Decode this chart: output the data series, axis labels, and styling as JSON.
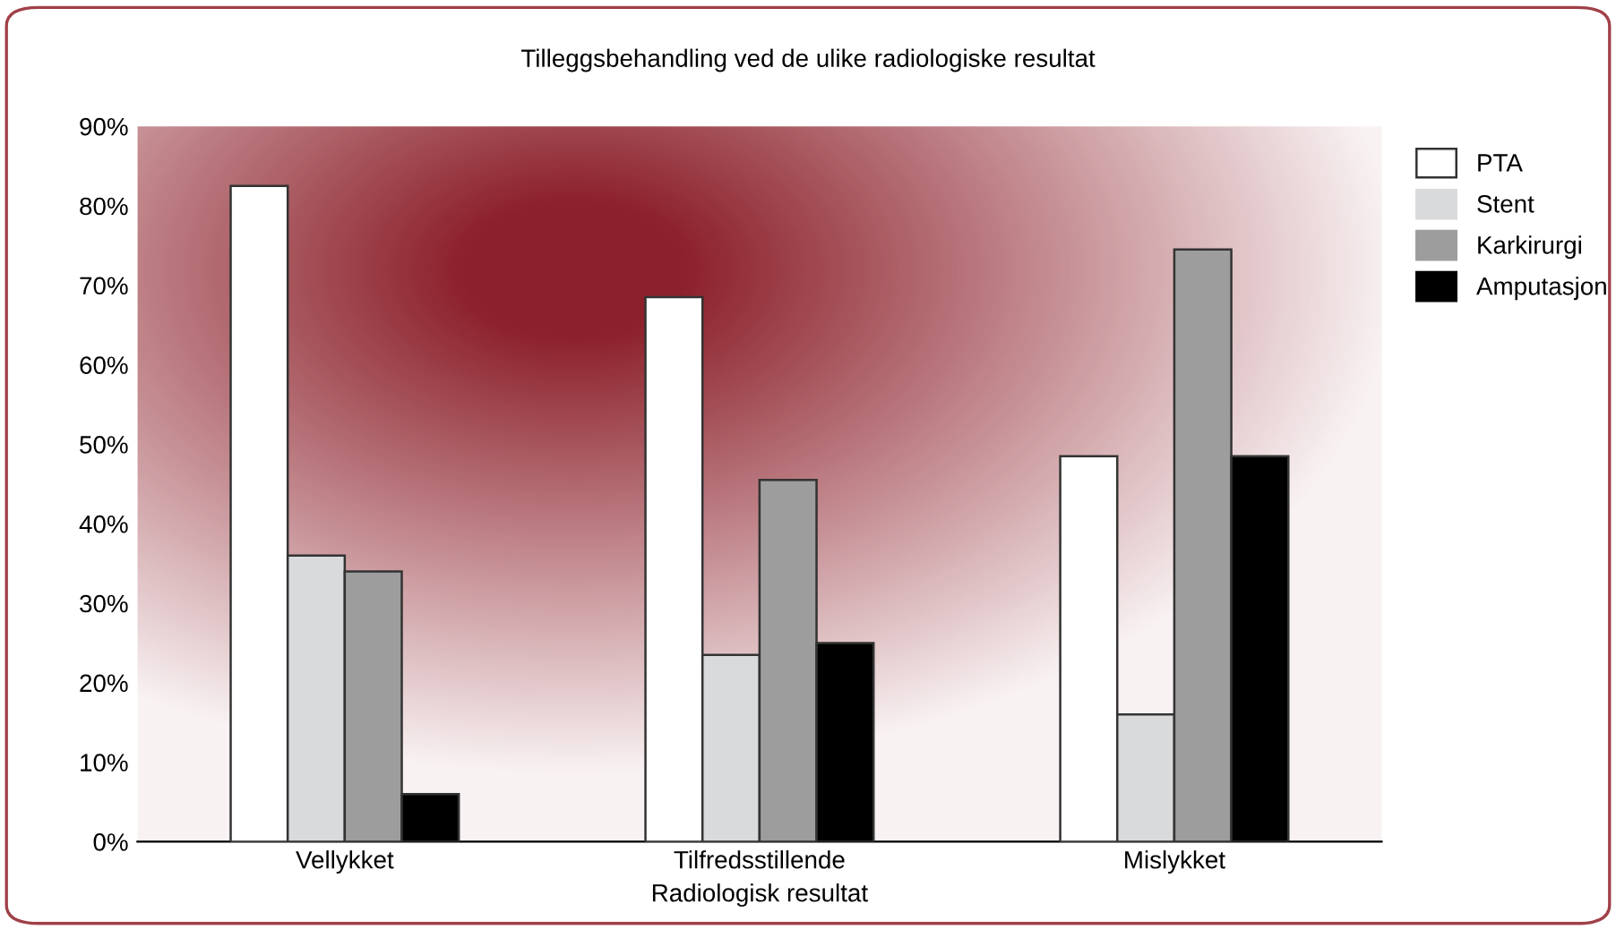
{
  "chart_data": {
    "type": "bar",
    "title": "Tilleggsbehandling ved de ulike radiologiske resultat",
    "xlabel": "Radiologisk resultat",
    "categories": [
      "Vellykket",
      "Tilfredsstillende",
      "Mislykket"
    ],
    "series": [
      {
        "name": "PTA",
        "color": "#ffffff",
        "values": [
          82.5,
          68.5,
          48.5
        ]
      },
      {
        "name": "Stent",
        "color": "#d9dadb",
        "values": [
          36,
          23.5,
          16
        ]
      },
      {
        "name": "Karkirurgi",
        "color": "#9d9d9d",
        "values": [
          34,
          45.5,
          74.5
        ]
      },
      {
        "name": "Amputasjon",
        "color": "#000000",
        "values": [
          6,
          25,
          48.5
        ]
      }
    ],
    "ylim": [
      0,
      90
    ],
    "yticks": [
      {
        "value": 0,
        "label": "0%"
      },
      {
        "value": 10,
        "label": "10%"
      },
      {
        "value": 20,
        "label": "20%"
      },
      {
        "value": 30,
        "label": "30%"
      },
      {
        "value": 40,
        "label": "40%"
      },
      {
        "value": 50,
        "label": "50%"
      },
      {
        "value": 60,
        "label": "60%"
      },
      {
        "value": 70,
        "label": "70%"
      },
      {
        "value": 80,
        "label": "80%"
      },
      {
        "value": 90,
        "label": "90%"
      }
    ],
    "grid": false,
    "legend": "top right"
  }
}
